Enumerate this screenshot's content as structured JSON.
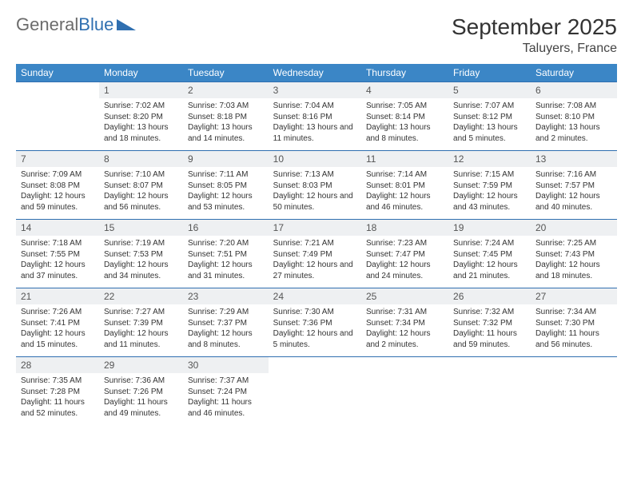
{
  "logo": {
    "part1": "General",
    "part2": "Blue"
  },
  "title": "September 2025",
  "location": "Taluyers, France",
  "colors": {
    "header_bg": "#3b86c6",
    "header_text": "#ffffff",
    "daynum_bg": "#eef0f2",
    "rule": "#2f6fb0",
    "text": "#333333",
    "logo_gray": "#6b6b6b",
    "logo_blue": "#2f6fb0"
  },
  "daysOfWeek": [
    "Sunday",
    "Monday",
    "Tuesday",
    "Wednesday",
    "Thursday",
    "Friday",
    "Saturday"
  ],
  "weeks": [
    [
      {
        "num": "",
        "sunrise": "",
        "sunset": "",
        "daylight": ""
      },
      {
        "num": "1",
        "sunrise": "Sunrise: 7:02 AM",
        "sunset": "Sunset: 8:20 PM",
        "daylight": "Daylight: 13 hours and 18 minutes."
      },
      {
        "num": "2",
        "sunrise": "Sunrise: 7:03 AM",
        "sunset": "Sunset: 8:18 PM",
        "daylight": "Daylight: 13 hours and 14 minutes."
      },
      {
        "num": "3",
        "sunrise": "Sunrise: 7:04 AM",
        "sunset": "Sunset: 8:16 PM",
        "daylight": "Daylight: 13 hours and 11 minutes."
      },
      {
        "num": "4",
        "sunrise": "Sunrise: 7:05 AM",
        "sunset": "Sunset: 8:14 PM",
        "daylight": "Daylight: 13 hours and 8 minutes."
      },
      {
        "num": "5",
        "sunrise": "Sunrise: 7:07 AM",
        "sunset": "Sunset: 8:12 PM",
        "daylight": "Daylight: 13 hours and 5 minutes."
      },
      {
        "num": "6",
        "sunrise": "Sunrise: 7:08 AM",
        "sunset": "Sunset: 8:10 PM",
        "daylight": "Daylight: 13 hours and 2 minutes."
      }
    ],
    [
      {
        "num": "7",
        "sunrise": "Sunrise: 7:09 AM",
        "sunset": "Sunset: 8:08 PM",
        "daylight": "Daylight: 12 hours and 59 minutes."
      },
      {
        "num": "8",
        "sunrise": "Sunrise: 7:10 AM",
        "sunset": "Sunset: 8:07 PM",
        "daylight": "Daylight: 12 hours and 56 minutes."
      },
      {
        "num": "9",
        "sunrise": "Sunrise: 7:11 AM",
        "sunset": "Sunset: 8:05 PM",
        "daylight": "Daylight: 12 hours and 53 minutes."
      },
      {
        "num": "10",
        "sunrise": "Sunrise: 7:13 AM",
        "sunset": "Sunset: 8:03 PM",
        "daylight": "Daylight: 12 hours and 50 minutes."
      },
      {
        "num": "11",
        "sunrise": "Sunrise: 7:14 AM",
        "sunset": "Sunset: 8:01 PM",
        "daylight": "Daylight: 12 hours and 46 minutes."
      },
      {
        "num": "12",
        "sunrise": "Sunrise: 7:15 AM",
        "sunset": "Sunset: 7:59 PM",
        "daylight": "Daylight: 12 hours and 43 minutes."
      },
      {
        "num": "13",
        "sunrise": "Sunrise: 7:16 AM",
        "sunset": "Sunset: 7:57 PM",
        "daylight": "Daylight: 12 hours and 40 minutes."
      }
    ],
    [
      {
        "num": "14",
        "sunrise": "Sunrise: 7:18 AM",
        "sunset": "Sunset: 7:55 PM",
        "daylight": "Daylight: 12 hours and 37 minutes."
      },
      {
        "num": "15",
        "sunrise": "Sunrise: 7:19 AM",
        "sunset": "Sunset: 7:53 PM",
        "daylight": "Daylight: 12 hours and 34 minutes."
      },
      {
        "num": "16",
        "sunrise": "Sunrise: 7:20 AM",
        "sunset": "Sunset: 7:51 PM",
        "daylight": "Daylight: 12 hours and 31 minutes."
      },
      {
        "num": "17",
        "sunrise": "Sunrise: 7:21 AM",
        "sunset": "Sunset: 7:49 PM",
        "daylight": "Daylight: 12 hours and 27 minutes."
      },
      {
        "num": "18",
        "sunrise": "Sunrise: 7:23 AM",
        "sunset": "Sunset: 7:47 PM",
        "daylight": "Daylight: 12 hours and 24 minutes."
      },
      {
        "num": "19",
        "sunrise": "Sunrise: 7:24 AM",
        "sunset": "Sunset: 7:45 PM",
        "daylight": "Daylight: 12 hours and 21 minutes."
      },
      {
        "num": "20",
        "sunrise": "Sunrise: 7:25 AM",
        "sunset": "Sunset: 7:43 PM",
        "daylight": "Daylight: 12 hours and 18 minutes."
      }
    ],
    [
      {
        "num": "21",
        "sunrise": "Sunrise: 7:26 AM",
        "sunset": "Sunset: 7:41 PM",
        "daylight": "Daylight: 12 hours and 15 minutes."
      },
      {
        "num": "22",
        "sunrise": "Sunrise: 7:27 AM",
        "sunset": "Sunset: 7:39 PM",
        "daylight": "Daylight: 12 hours and 11 minutes."
      },
      {
        "num": "23",
        "sunrise": "Sunrise: 7:29 AM",
        "sunset": "Sunset: 7:37 PM",
        "daylight": "Daylight: 12 hours and 8 minutes."
      },
      {
        "num": "24",
        "sunrise": "Sunrise: 7:30 AM",
        "sunset": "Sunset: 7:36 PM",
        "daylight": "Daylight: 12 hours and 5 minutes."
      },
      {
        "num": "25",
        "sunrise": "Sunrise: 7:31 AM",
        "sunset": "Sunset: 7:34 PM",
        "daylight": "Daylight: 12 hours and 2 minutes."
      },
      {
        "num": "26",
        "sunrise": "Sunrise: 7:32 AM",
        "sunset": "Sunset: 7:32 PM",
        "daylight": "Daylight: 11 hours and 59 minutes."
      },
      {
        "num": "27",
        "sunrise": "Sunrise: 7:34 AM",
        "sunset": "Sunset: 7:30 PM",
        "daylight": "Daylight: 11 hours and 56 minutes."
      }
    ],
    [
      {
        "num": "28",
        "sunrise": "Sunrise: 7:35 AM",
        "sunset": "Sunset: 7:28 PM",
        "daylight": "Daylight: 11 hours and 52 minutes."
      },
      {
        "num": "29",
        "sunrise": "Sunrise: 7:36 AM",
        "sunset": "Sunset: 7:26 PM",
        "daylight": "Daylight: 11 hours and 49 minutes."
      },
      {
        "num": "30",
        "sunrise": "Sunrise: 7:37 AM",
        "sunset": "Sunset: 7:24 PM",
        "daylight": "Daylight: 11 hours and 46 minutes."
      },
      {
        "num": "",
        "sunrise": "",
        "sunset": "",
        "daylight": ""
      },
      {
        "num": "",
        "sunrise": "",
        "sunset": "",
        "daylight": ""
      },
      {
        "num": "",
        "sunrise": "",
        "sunset": "",
        "daylight": ""
      },
      {
        "num": "",
        "sunrise": "",
        "sunset": "",
        "daylight": ""
      }
    ]
  ]
}
